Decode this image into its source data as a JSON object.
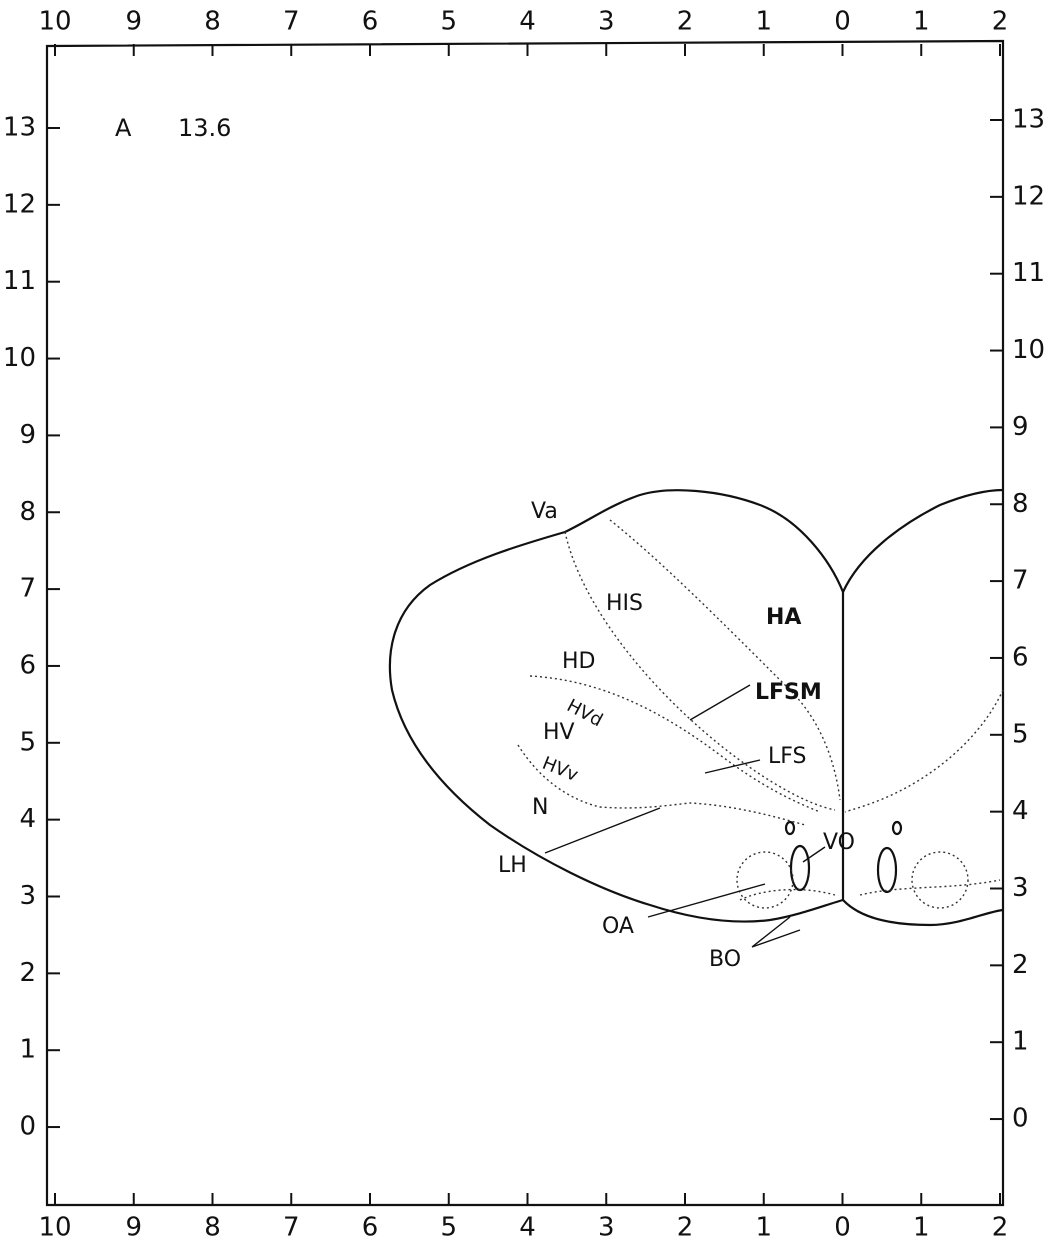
{
  "axes": {
    "top_labels": [
      "10",
      "9",
      "8",
      "7",
      "6",
      "5",
      "4",
      "3",
      "2",
      "1",
      "0",
      "1",
      "2"
    ],
    "bottom_labels": [
      "10",
      "9",
      "8",
      "7",
      "6",
      "5",
      "4",
      "3",
      "2",
      "1",
      "0",
      "1",
      "2"
    ],
    "left_labels": [
      "13",
      "12",
      "11",
      "10",
      "9",
      "8",
      "7",
      "6",
      "5",
      "4",
      "3",
      "2",
      "1",
      "0"
    ],
    "right_labels": [
      "13",
      "12",
      "11",
      "10",
      "9",
      "8",
      "7",
      "6",
      "5",
      "4",
      "3",
      "2",
      "1",
      "0"
    ]
  },
  "section": {
    "plane": "A",
    "level": "13.6"
  },
  "labels": [
    "Va",
    "HIS",
    "HA",
    "HD",
    "HVd",
    "HV",
    "HVv",
    "N",
    "LFSM",
    "LFS",
    "LH",
    "VO",
    "OA",
    "BO"
  ]
}
